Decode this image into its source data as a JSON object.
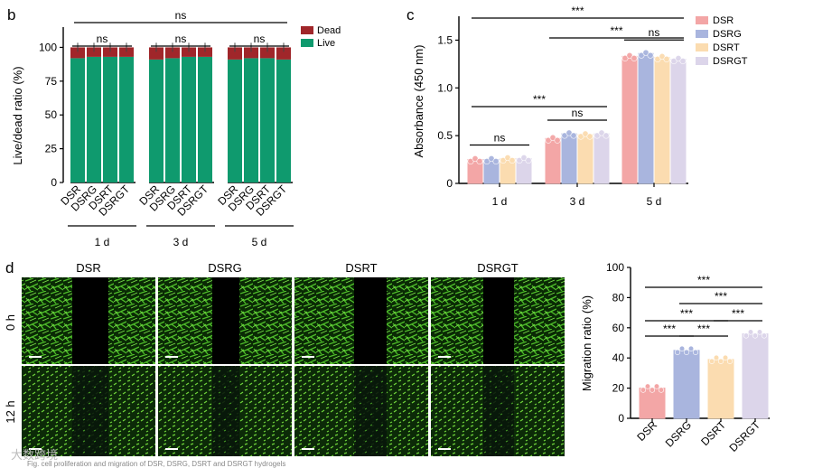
{
  "panels": {
    "b": {
      "letter": "b"
    },
    "c": {
      "letter": "c"
    },
    "d": {
      "letter": "d"
    }
  },
  "chart_data": [
    {
      "id": "b",
      "type": "bar",
      "stacked": true,
      "groups": [
        "1 d",
        "3 d",
        "5 d"
      ],
      "categories": [
        "DSR",
        "DSRG",
        "DSRT",
        "DSRGT"
      ],
      "series": [
        {
          "name": "Live",
          "color": "#0f9a6e",
          "values": [
            [
              92,
              93,
              93,
              93
            ],
            [
              91,
              92,
              93,
              93
            ],
            [
              91,
              92,
              92,
              91
            ]
          ]
        },
        {
          "name": "Dead",
          "color": "#a0262a",
          "values": [
            [
              8,
              7,
              7,
              7
            ],
            [
              9,
              8,
              7,
              7
            ],
            [
              9,
              8,
              8,
              9
            ]
          ]
        }
      ],
      "ylabel": "Live/dead ratio (%)",
      "ylim": [
        0,
        115
      ],
      "yticks": [
        0,
        25,
        50,
        75,
        100
      ],
      "significance": [
        {
          "group": 0,
          "label": "ns"
        },
        {
          "group": 1,
          "label": "ns"
        },
        {
          "group": 2,
          "label": "ns"
        },
        {
          "group": "all",
          "label": "ns"
        }
      ]
    },
    {
      "id": "c",
      "type": "bar",
      "groups": [
        "1 d",
        "3 d",
        "5 d"
      ],
      "series": [
        {
          "name": "DSR",
          "color": "#f3a6a6",
          "values": [
            0.25,
            0.47,
            1.33
          ]
        },
        {
          "name": "DSRG",
          "color": "#a9b5de",
          "values": [
            0.25,
            0.52,
            1.36
          ]
        },
        {
          "name": "DSRT",
          "color": "#fbdcb0",
          "values": [
            0.26,
            0.51,
            1.32
          ]
        },
        {
          "name": "DSRGT",
          "color": "#dcd5ea",
          "values": [
            0.26,
            0.52,
            1.3
          ]
        }
      ],
      "ylabel": "Absorbance (450 nm)",
      "ylim": [
        0,
        1.75
      ],
      "yticks": [
        0,
        0.5,
        1.0,
        1.5
      ],
      "ytick_labels": [
        "0",
        "0.5",
        "1.0",
        "1.5"
      ],
      "significance": [
        {
          "group": 0,
          "label": "ns"
        },
        {
          "group": 1,
          "label": "ns"
        },
        {
          "group": 2,
          "label": "ns"
        },
        {
          "from": 0,
          "to": 1,
          "label": "***"
        },
        {
          "from": 1,
          "to": 2,
          "label": "***"
        },
        {
          "from": 0,
          "to": 2,
          "label": "***"
        }
      ]
    },
    {
      "id": "d-chart",
      "type": "bar",
      "categories": [
        "DSR",
        "DSRG",
        "DSRT",
        "DSRGT"
      ],
      "values": [
        20,
        45,
        39,
        56
      ],
      "colors": [
        "#f3a6a6",
        "#a9b5de",
        "#fbdcb0",
        "#dcd5ea"
      ],
      "ylabel": "Migration ratio (%)",
      "ylim": [
        0,
        100
      ],
      "yticks": [
        0,
        20,
        40,
        60,
        80,
        100
      ],
      "significance": [
        {
          "from": 0,
          "to": 1,
          "label": "***"
        },
        {
          "from": 1,
          "to": 2,
          "label": "***"
        },
        {
          "from": 2,
          "to": 3,
          "label": "***"
        },
        {
          "from": 0,
          "to": 2,
          "label": "***"
        },
        {
          "from": 1,
          "to": 3,
          "label": "***"
        },
        {
          "from": 0,
          "to": 3,
          "label": "***"
        }
      ]
    }
  ],
  "micrographs": {
    "columns": [
      "DSR",
      "DSRG",
      "DSRT",
      "DSRGT"
    ],
    "rows": [
      "0 h",
      "12 h"
    ]
  },
  "watermark": "大数跨境",
  "caption": "Fig. cell proliferation and migration of DSR, DSRG, DSRT and DSRGT hydrogels"
}
